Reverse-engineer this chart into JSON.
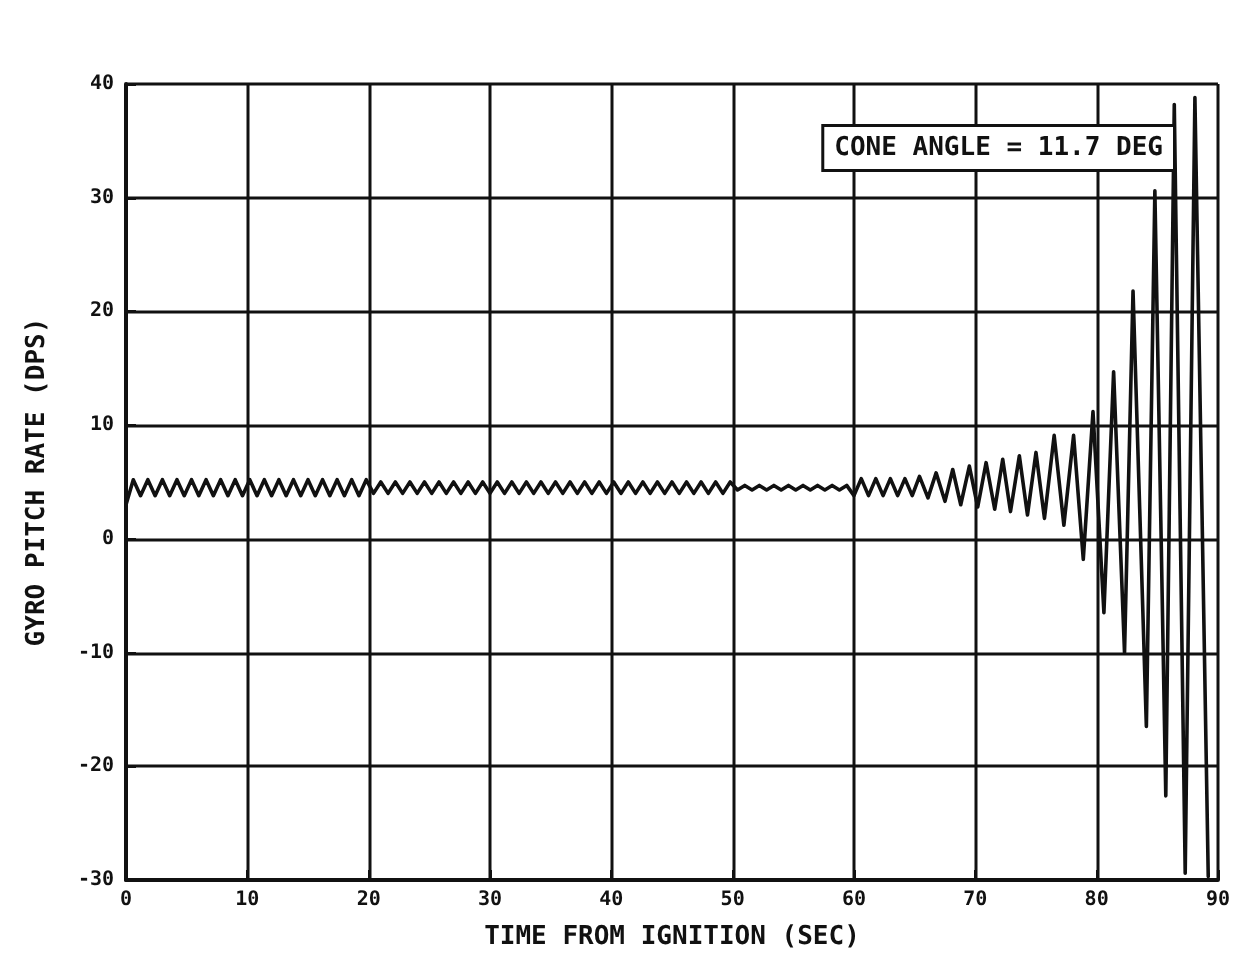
{
  "chart_data": {
    "type": "line",
    "xlabel": "TIME FROM IGNITION (SEC)",
    "ylabel": "GYRO PITCH RATE (DPS)",
    "annotations": [
      "CONE ANGLE = 11.7 DEG"
    ],
    "xlim": [
      0,
      90
    ],
    "xticks": [
      0,
      10,
      20,
      30,
      40,
      50,
      60,
      70,
      80,
      90
    ],
    "ylim": [
      -30,
      40
    ],
    "yticks": [
      -30,
      -20,
      -10,
      0,
      10,
      20,
      30,
      40
    ],
    "grid": true,
    "legend": false,
    "marker": "none",
    "line_style": "solid",
    "series": [
      {
        "color": "#111111",
        "x": [
          0,
          0.6,
          1.2,
          1.8,
          2.4,
          3,
          3.6,
          4.2,
          4.8,
          5.4,
          6,
          6.6,
          7.2,
          7.8,
          8.4,
          9,
          9.6,
          10.2,
          10.8,
          11.4,
          12,
          12.6,
          13.2,
          13.8,
          14.4,
          15,
          15.6,
          16.2,
          16.8,
          17.4,
          18,
          18.6,
          19.2,
          19.8,
          20.4,
          21,
          21.6,
          22.2,
          22.8,
          23.4,
          24,
          24.6,
          25.2,
          25.8,
          26.4,
          27,
          27.6,
          28.2,
          28.8,
          29.4,
          30,
          30.6,
          31.2,
          31.8,
          32.4,
          33,
          33.6,
          34.2,
          34.8,
          35.4,
          36,
          36.6,
          37.2,
          37.8,
          38.4,
          39,
          39.6,
          40.2,
          40.8,
          41.4,
          42,
          42.6,
          43.2,
          43.8,
          44.4,
          45,
          45.6,
          46.2,
          46.8,
          47.4,
          48,
          48.6,
          49.2,
          49.8,
          50.4,
          51,
          51.6,
          52.2,
          52.8,
          53.4,
          54,
          54.6,
          55.2,
          55.8,
          56.4,
          57,
          57.6,
          58.2,
          58.8,
          59.4,
          60,
          60.6,
          61.2,
          61.8,
          62.4,
          63,
          63.6,
          64.2,
          64.8,
          65.4,
          66.1,
          66.77,
          67.5,
          68.14,
          68.8,
          69.51,
          70.2,
          70.89,
          71.6,
          72.26,
          72.9,
          73.63,
          74.3,
          75,
          75.7,
          76.5,
          77.3,
          78.1,
          78.9,
          79.7,
          80.6,
          81.4,
          82.3,
          83,
          84.1,
          84.8,
          85.7,
          86.4,
          87.3,
          88.1,
          89.2
        ],
        "values": [
          3.0,
          5.2,
          3.8,
          5.2,
          3.8,
          5.2,
          3.8,
          5.2,
          3.8,
          5.2,
          3.8,
          5.2,
          3.8,
          5.2,
          3.8,
          5.2,
          3.8,
          5.2,
          3.8,
          5.2,
          3.8,
          5.2,
          3.8,
          5.2,
          3.8,
          5.2,
          3.8,
          5.2,
          3.8,
          5.2,
          3.8,
          5.2,
          3.8,
          5.2,
          4.0,
          5.0,
          4.0,
          5.0,
          4.0,
          5.0,
          4.0,
          5.0,
          4.0,
          5.0,
          4.0,
          5.0,
          4.0,
          5.0,
          4.0,
          5.0,
          4.0,
          5.0,
          4.0,
          5.0,
          4.0,
          5.0,
          4.0,
          5.0,
          4.0,
          5.0,
          4.0,
          5.0,
          4.0,
          5.0,
          4.0,
          5.0,
          4.0,
          5.0,
          4.0,
          5.0,
          4.0,
          5.0,
          4.0,
          5.0,
          4.0,
          5.0,
          4.0,
          5.0,
          4.0,
          5.0,
          4.0,
          5.0,
          4.0,
          5.0,
          4.3,
          4.7,
          4.3,
          4.7,
          4.3,
          4.7,
          4.3,
          4.7,
          4.3,
          4.7,
          4.3,
          4.7,
          4.3,
          4.7,
          4.3,
          4.7,
          3.8,
          5.3,
          3.8,
          5.3,
          3.8,
          5.3,
          3.8,
          5.3,
          3.8,
          5.5,
          3.6,
          5.8,
          3.3,
          6.1,
          3.0,
          6.4,
          2.8,
          6.7,
          2.6,
          7.0,
          2.4,
          7.3,
          2.1,
          7.6,
          1.8,
          9.1,
          1.2,
          9.1,
          -1.8,
          11.2,
          -6.5,
          14.7,
          -10,
          21.8,
          -16.5,
          30.6,
          -22.6,
          38.2,
          -29.4,
          38.8,
          -29.7
        ]
      }
    ]
  }
}
